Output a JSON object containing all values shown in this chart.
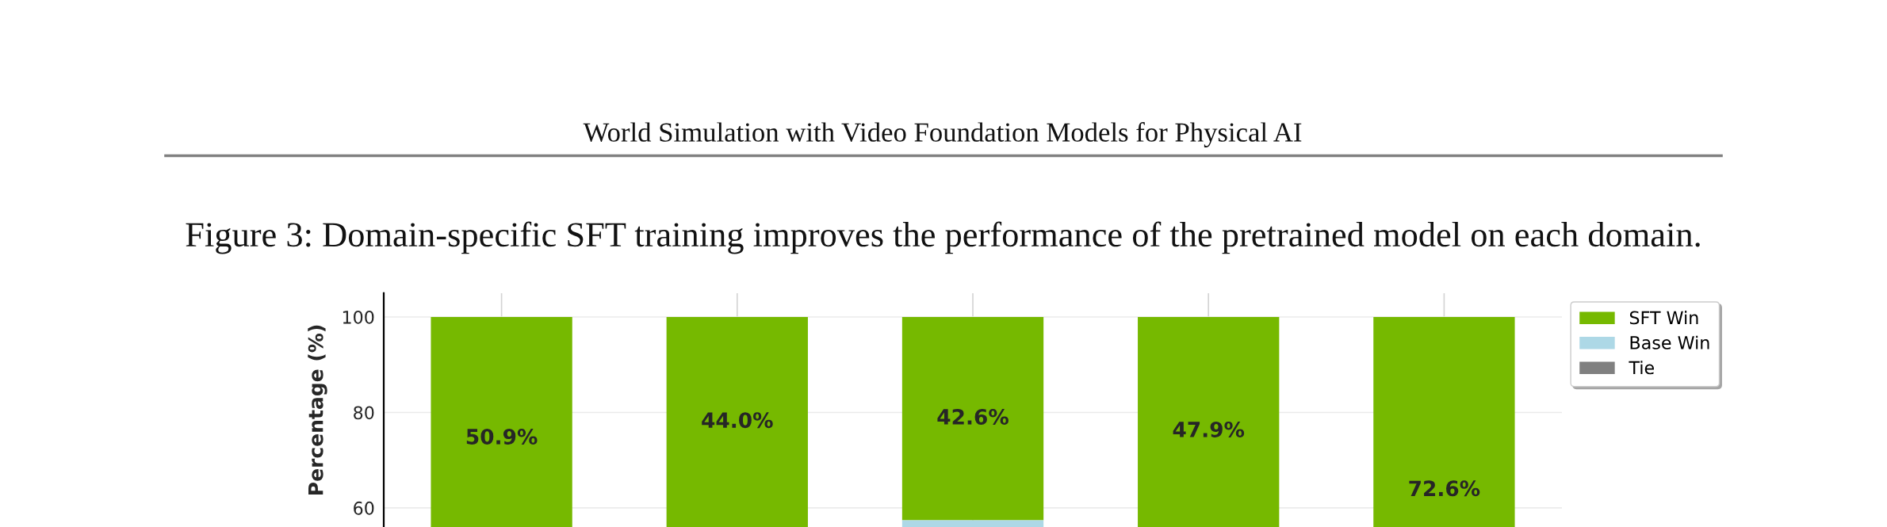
{
  "chart_data": {
    "type": "bar",
    "title": "Figure 3: Domain-specific SFT training improves the performance of the pretrained model on each domain.",
    "annotations": [
      "World Simulation with Video Foundation Models for Physical AI"
    ],
    "ylabel": "Percentage (%)",
    "categories": [
      null,
      null,
      null,
      null,
      null
    ],
    "series": [
      {
        "name": "SFT Win",
        "color": "#76b900",
        "values": [
          50.9,
          44.0,
          42.6,
          47.9,
          72.6
        ],
        "base": [
          49.1,
          56.0,
          57.4,
          52.1,
          27.4
        ],
        "value_labels": [
          "50.9%",
          "44.0%",
          "42.6%",
          "47.9%",
          "72.6%"
        ]
      },
      {
        "name": "Base Win",
        "color": "#add8e6",
        "values": [
          null,
          null,
          57.4,
          null,
          null
        ]
      },
      {
        "name": "Tie",
        "color": "#808080",
        "values": [
          null,
          null,
          null,
          null,
          null
        ]
      }
    ],
    "ylim": [
      56,
      105
    ],
    "yticks": [
      60,
      80,
      100
    ],
    "grid": true,
    "legend": "top right",
    "tick_labels": "y"
  }
}
